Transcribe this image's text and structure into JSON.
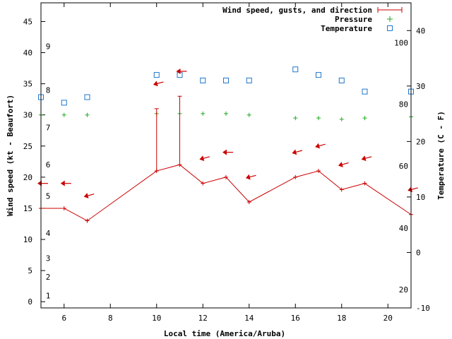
{
  "chart_data": {
    "type": "line",
    "xlabel": "Local time (America/Aruba)",
    "ylabel_left": "Wind speed (kt - Beaufort)",
    "ylabel_right": "Temperature (C - F)",
    "xlim": [
      5,
      21
    ],
    "ylim_left": [
      -1,
      48
    ],
    "ylim_right_celsius": [
      -10,
      45
    ],
    "x_ticks": [
      6,
      8,
      10,
      12,
      14,
      16,
      18,
      20
    ],
    "y_left_ticks": [
      0,
      5,
      10,
      15,
      20,
      25,
      30,
      35,
      40,
      45
    ],
    "y_right_ticks_celsius": [
      -10,
      0,
      10,
      20,
      30,
      40
    ],
    "beaufort_labels": [
      {
        "label": "1",
        "kt": 1
      },
      {
        "label": "2",
        "kt": 4
      },
      {
        "label": "3",
        "kt": 7
      },
      {
        "label": "4",
        "kt": 11
      },
      {
        "label": "5",
        "kt": 17
      },
      {
        "label": "6",
        "kt": 22
      },
      {
        "label": "7",
        "kt": 28
      },
      {
        "label": "8",
        "kt": 34
      },
      {
        "label": "9",
        "kt": 41
      }
    ],
    "fahrenheit_labels": [
      {
        "label": "20",
        "celsius": -6.7
      },
      {
        "label": "40",
        "celsius": 4.4
      },
      {
        "label": "60",
        "celsius": 15.6
      },
      {
        "label": "80",
        "celsius": 26.7
      },
      {
        "label": "100",
        "celsius": 37.8
      }
    ],
    "legend": [
      "Wind speed, gusts, and direction",
      "Pressure",
      "Temperature"
    ],
    "legend_position": "top-right",
    "colors": {
      "wind": "#cc0000",
      "pressure": "#22aa22",
      "temperature": "#1f77cc"
    },
    "wind": [
      {
        "x": 5,
        "speed": 15
      },
      {
        "x": 6,
        "speed": 15
      },
      {
        "x": 7,
        "speed": 13
      },
      {
        "x": 10,
        "speed": 21,
        "gust": 31
      },
      {
        "x": 11,
        "speed": 22,
        "gust": 33
      },
      {
        "x": 12,
        "speed": 19
      },
      {
        "x": 13,
        "speed": 20
      },
      {
        "x": 14,
        "speed": 16
      },
      {
        "x": 16,
        "speed": 20
      },
      {
        "x": 17,
        "speed": 21
      },
      {
        "x": 18,
        "speed": 18
      },
      {
        "x": 19,
        "speed": 19
      },
      {
        "x": 21,
        "speed": 14
      }
    ],
    "direction_arrows": [
      {
        "x": 5,
        "y": 19,
        "angle": 0
      },
      {
        "x": 6,
        "y": 19,
        "angle": 0
      },
      {
        "x": 7,
        "y": 17,
        "angle": -15
      },
      {
        "x": 10,
        "y": 35,
        "angle": -15
      },
      {
        "x": 11,
        "y": 37,
        "angle": 0
      },
      {
        "x": 12,
        "y": 23,
        "angle": -15
      },
      {
        "x": 13,
        "y": 24,
        "angle": 0
      },
      {
        "x": 14,
        "y": 20,
        "angle": -15
      },
      {
        "x": 16,
        "y": 24,
        "angle": -15
      },
      {
        "x": 17,
        "y": 25,
        "angle": -15
      },
      {
        "x": 18,
        "y": 22,
        "angle": -15
      },
      {
        "x": 19,
        "y": 23,
        "angle": -15
      },
      {
        "x": 21,
        "y": 18,
        "angle": -15
      }
    ],
    "pressure": [
      {
        "x": 5,
        "y": 30
      },
      {
        "x": 6,
        "y": 30
      },
      {
        "x": 7,
        "y": 30
      },
      {
        "x": 10,
        "y": 30.2
      },
      {
        "x": 11,
        "y": 30.2
      },
      {
        "x": 12,
        "y": 30.2
      },
      {
        "x": 13,
        "y": 30.2
      },
      {
        "x": 14,
        "y": 30
      },
      {
        "x": 16,
        "y": 29.5
      },
      {
        "x": 17,
        "y": 29.5
      },
      {
        "x": 18,
        "y": 29.3
      },
      {
        "x": 19,
        "y": 29.5
      },
      {
        "x": 21,
        "y": 29.7
      }
    ],
    "temperature_celsius": [
      {
        "x": 5,
        "y": 28
      },
      {
        "x": 6,
        "y": 27
      },
      {
        "x": 7,
        "y": 28
      },
      {
        "x": 10,
        "y": 32
      },
      {
        "x": 11,
        "y": 32
      },
      {
        "x": 12,
        "y": 31
      },
      {
        "x": 13,
        "y": 31
      },
      {
        "x": 14,
        "y": 31
      },
      {
        "x": 16,
        "y": 33
      },
      {
        "x": 17,
        "y": 32
      },
      {
        "x": 18,
        "y": 31
      },
      {
        "x": 19,
        "y": 29
      },
      {
        "x": 21,
        "y": 29
      }
    ]
  }
}
